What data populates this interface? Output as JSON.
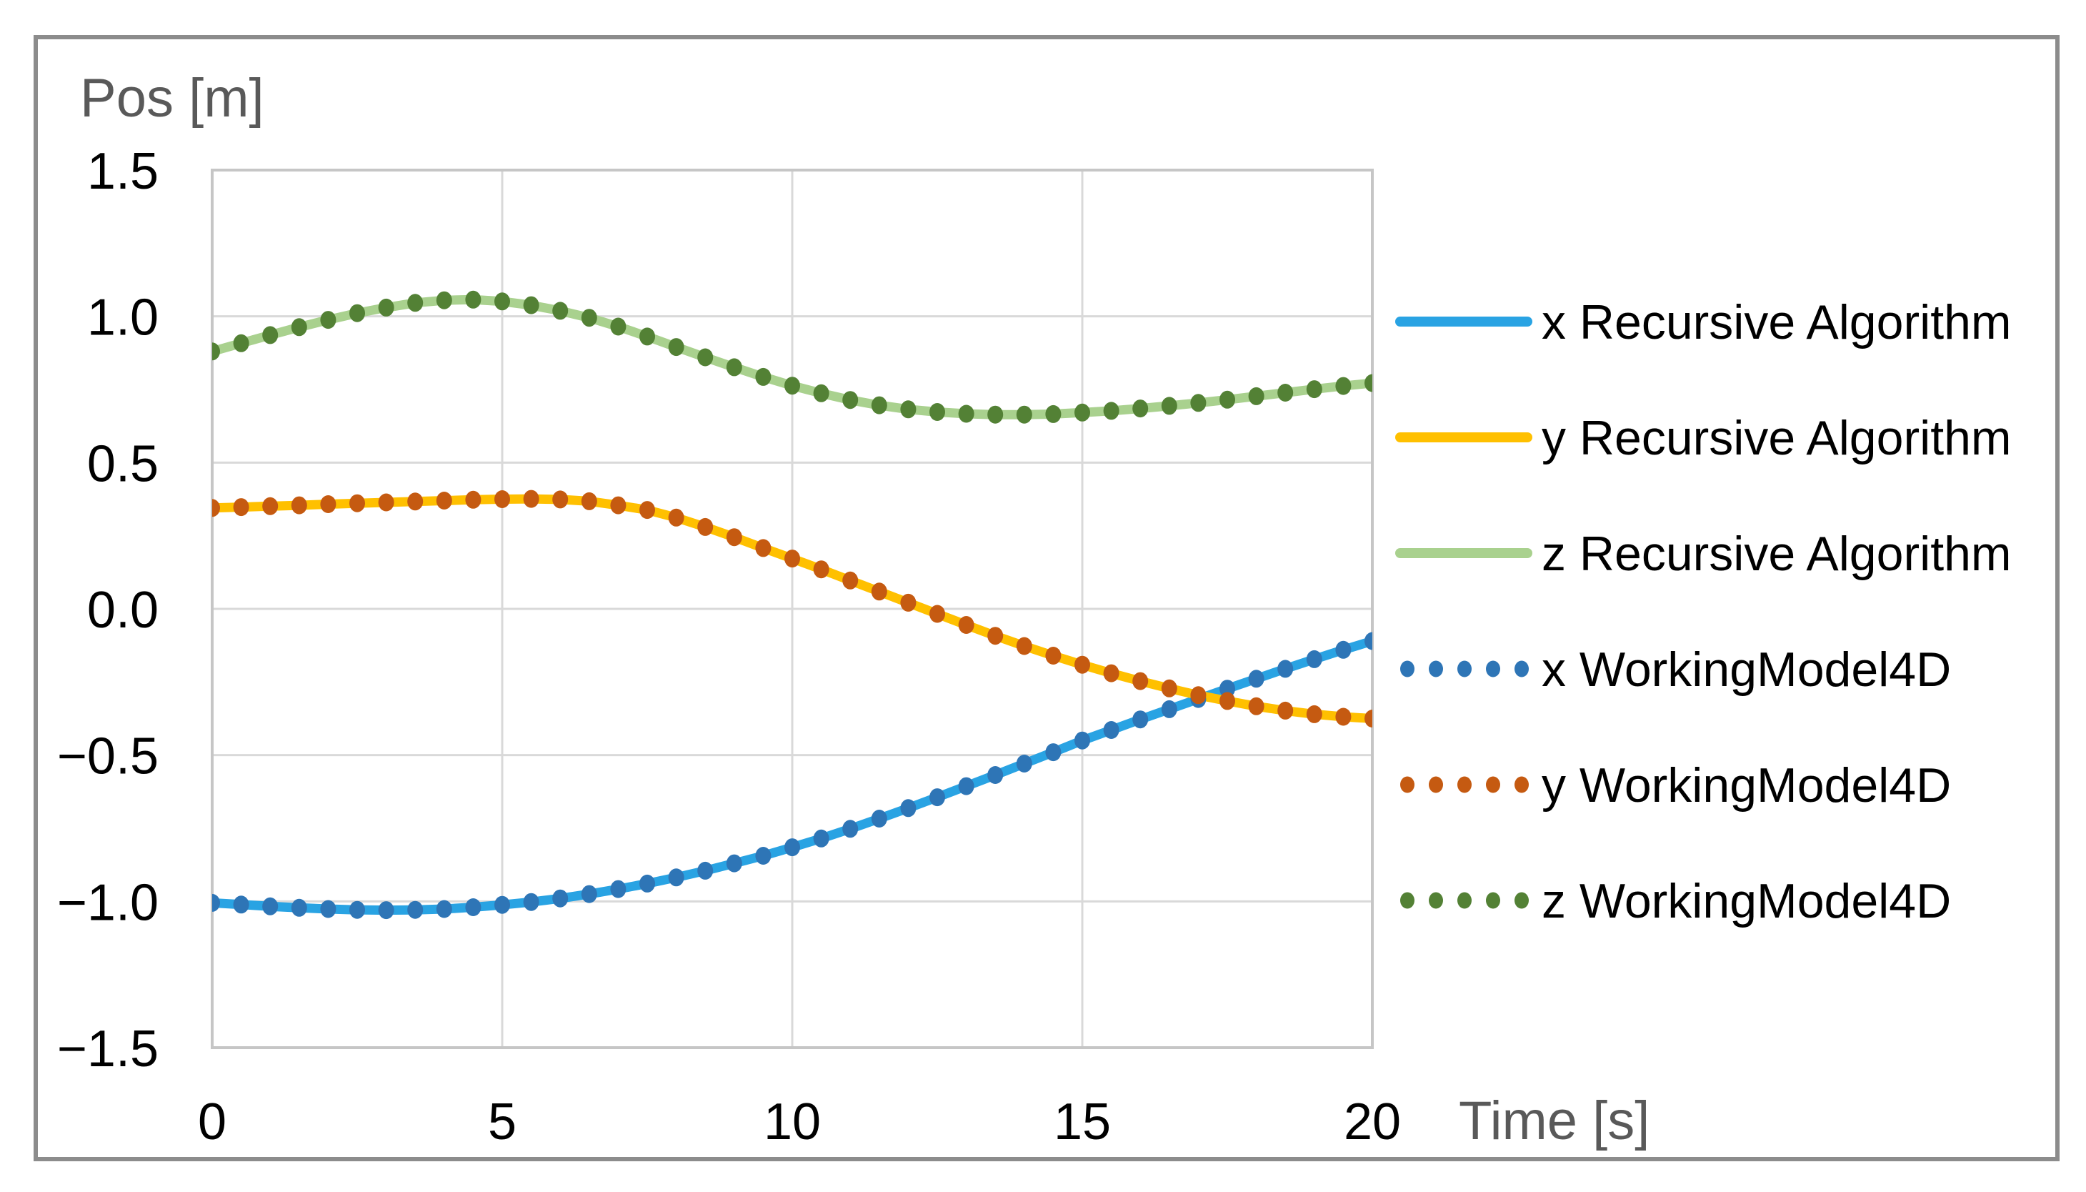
{
  "figure": {
    "background": "#FFFFFF",
    "frame_border_color": "#8C8C8C",
    "plot_border_color": "#C6C6C6",
    "gridline_color": "#D9D9D9",
    "tick_label_color": "#000000",
    "axis_title_color": "#595959"
  },
  "chart_data": {
    "type": "line",
    "title": "",
    "ylabel": "Pos [m]",
    "xlabel": "Time [s]",
    "xlim": [
      0,
      20
    ],
    "ylim": [
      -1.5,
      1.5
    ],
    "x_step": 0.5,
    "grid": true,
    "legend_position": "right",
    "x_ticks": [
      "0",
      "5",
      "10",
      "15",
      "20"
    ],
    "y_ticks": [
      "1.5",
      "1.0",
      "0.5",
      "0.0",
      "−0.5",
      "−1.0",
      "−1.5"
    ],
    "x": [
      0,
      0.5,
      1,
      1.5,
      2,
      2.5,
      3,
      3.5,
      4,
      4.5,
      5,
      5.5,
      6,
      6.5,
      7,
      7.5,
      8,
      8.5,
      9,
      9.5,
      10,
      10.5,
      11,
      11.5,
      12,
      12.5,
      13,
      13.5,
      14,
      14.5,
      15,
      15.5,
      16,
      16.5,
      17,
      17.5,
      18,
      18.5,
      19,
      19.5,
      20
    ],
    "series": [
      {
        "name": "x Recursive Algorithm",
        "style": "solid",
        "color": "#29A3E3",
        "values": [
          -1.005,
          -1.011,
          -1.017,
          -1.022,
          -1.026,
          -1.029,
          -1.03,
          -1.029,
          -1.026,
          -1.02,
          -1.012,
          -1.002,
          -0.99,
          -0.975,
          -0.958,
          -0.939,
          -0.918,
          -0.895,
          -0.87,
          -0.844,
          -0.815,
          -0.785,
          -0.752,
          -0.717,
          -0.681,
          -0.644,
          -0.606,
          -0.568,
          -0.529,
          -0.49,
          -0.45,
          -0.414,
          -0.378,
          -0.343,
          -0.308,
          -0.273,
          -0.239,
          -0.205,
          -0.172,
          -0.14,
          -0.11
        ]
      },
      {
        "name": "y Recursive Algorithm",
        "style": "solid",
        "color": "#FFC000",
        "values": [
          0.345,
          0.348,
          0.351,
          0.354,
          0.358,
          0.361,
          0.364,
          0.367,
          0.37,
          0.373,
          0.375,
          0.376,
          0.374,
          0.368,
          0.354,
          0.338,
          0.312,
          0.28,
          0.245,
          0.208,
          0.172,
          0.135,
          0.097,
          0.059,
          0.021,
          -0.017,
          -0.055,
          -0.092,
          -0.127,
          -0.16,
          -0.191,
          -0.22,
          -0.247,
          -0.272,
          -0.295,
          -0.315,
          -0.333,
          -0.348,
          -0.36,
          -0.369,
          -0.375
        ]
      },
      {
        "name": "z Recursive Algorithm",
        "style": "solid",
        "color": "#A9D18E",
        "values": [
          0.88,
          0.908,
          0.936,
          0.963,
          0.988,
          1.011,
          1.03,
          1.046,
          1.055,
          1.057,
          1.051,
          1.038,
          1.019,
          0.995,
          0.965,
          0.931,
          0.895,
          0.86,
          0.826,
          0.793,
          0.763,
          0.737,
          0.714,
          0.696,
          0.682,
          0.673,
          0.667,
          0.664,
          0.664,
          0.666,
          0.671,
          0.677,
          0.685,
          0.694,
          0.704,
          0.715,
          0.727,
          0.739,
          0.751,
          0.762,
          0.772
        ]
      },
      {
        "name": "x WorkingModel4D",
        "style": "dots",
        "color": "#2E75B6",
        "values": [
          -1.005,
          -1.011,
          -1.017,
          -1.022,
          -1.026,
          -1.029,
          -1.03,
          -1.029,
          -1.026,
          -1.02,
          -1.012,
          -1.002,
          -0.99,
          -0.975,
          -0.958,
          -0.939,
          -0.918,
          -0.895,
          -0.87,
          -0.844,
          -0.815,
          -0.785,
          -0.752,
          -0.717,
          -0.681,
          -0.644,
          -0.606,
          -0.568,
          -0.529,
          -0.49,
          -0.45,
          -0.414,
          -0.378,
          -0.343,
          -0.308,
          -0.273,
          -0.239,
          -0.205,
          -0.172,
          -0.14,
          -0.11
        ]
      },
      {
        "name": "y WorkingModel4D",
        "style": "dots",
        "color": "#C55A11",
        "values": [
          0.345,
          0.348,
          0.351,
          0.354,
          0.358,
          0.361,
          0.364,
          0.367,
          0.37,
          0.373,
          0.375,
          0.376,
          0.374,
          0.368,
          0.354,
          0.338,
          0.312,
          0.28,
          0.245,
          0.208,
          0.172,
          0.135,
          0.097,
          0.059,
          0.021,
          -0.017,
          -0.055,
          -0.092,
          -0.127,
          -0.16,
          -0.191,
          -0.22,
          -0.247,
          -0.272,
          -0.295,
          -0.315,
          -0.333,
          -0.348,
          -0.36,
          -0.369,
          -0.375
        ]
      },
      {
        "name": "z WorkingModel4D",
        "style": "dots",
        "color": "#538135",
        "values": [
          0.88,
          0.908,
          0.936,
          0.963,
          0.988,
          1.011,
          1.03,
          1.046,
          1.055,
          1.057,
          1.051,
          1.038,
          1.019,
          0.995,
          0.965,
          0.931,
          0.895,
          0.86,
          0.826,
          0.793,
          0.763,
          0.737,
          0.714,
          0.696,
          0.682,
          0.673,
          0.667,
          0.664,
          0.664,
          0.666,
          0.671,
          0.677,
          0.685,
          0.694,
          0.704,
          0.715,
          0.727,
          0.739,
          0.751,
          0.762,
          0.772
        ]
      }
    ]
  }
}
